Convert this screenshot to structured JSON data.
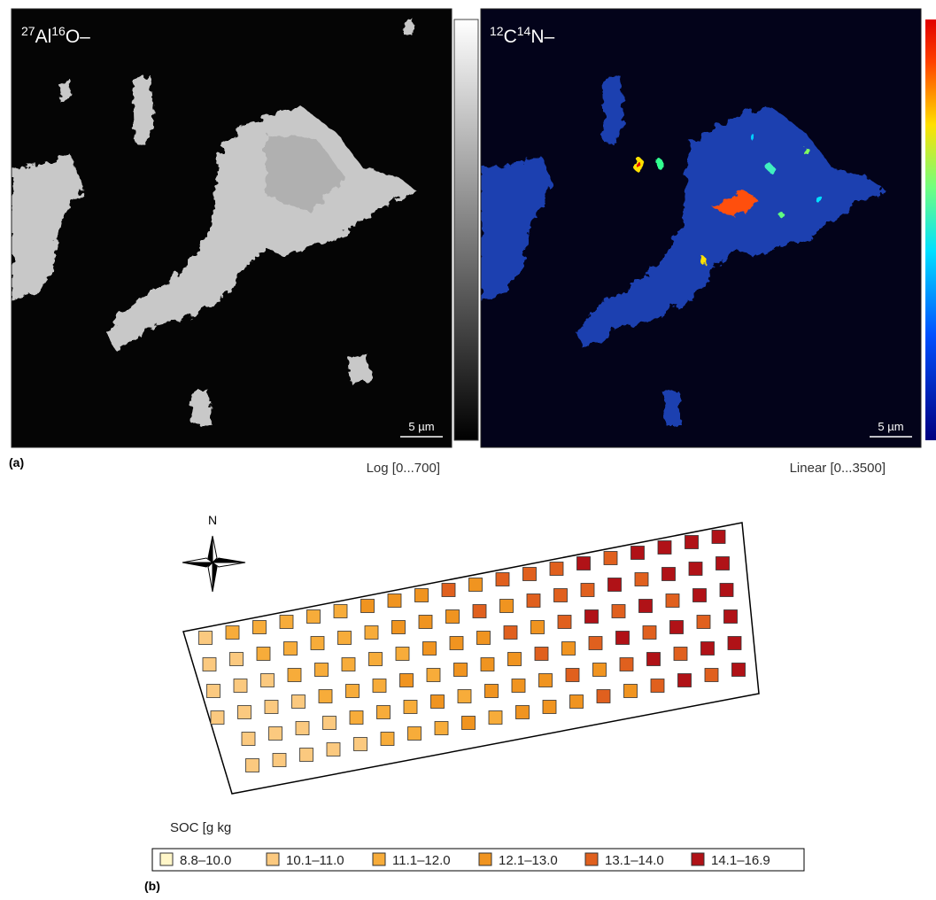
{
  "panel_a": {
    "label": "(a)",
    "images": [
      {
        "title_parts": [
          "27",
          "Al",
          "16",
          "O–"
        ],
        "scale_bar": "5 µm",
        "colorbar_label": "Log [0...700]"
      },
      {
        "title_parts": [
          "12",
          "C",
          "14",
          "N–"
        ],
        "scale_bar": "5 µm",
        "colorbar_label": "Linear [0...3500]"
      }
    ]
  },
  "panel_b": {
    "label": "(b)",
    "compass": "N",
    "legend_title": "SOC [g kg",
    "legend": [
      {
        "label": "8.8–10.0",
        "color": "#fff6c8"
      },
      {
        "label": "10.1–11.0",
        "color": "#fbc97f"
      },
      {
        "label": "11.1–12.0",
        "color": "#f7ac3a"
      },
      {
        "label": "12.1–13.0",
        "color": "#f09420"
      },
      {
        "label": "13.1–14.0",
        "color": "#e0601e"
      },
      {
        "label": "14.1–16.9",
        "color": "#b01217"
      }
    ]
  }
}
